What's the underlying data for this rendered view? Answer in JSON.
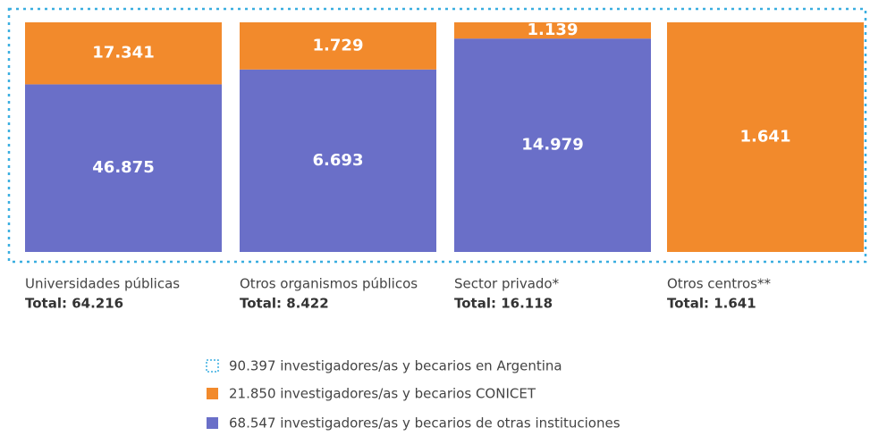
{
  "chart_data": {
    "type": "stacked_bar_100",
    "categories": [
      "Universidades públicas",
      "Otros organismos públicos",
      "Sector privado*",
      "Otros centros**"
    ],
    "total_labels": [
      "Total: 64.216",
      "Total: 8.422",
      "Total: 16.118",
      "Total: 1.641"
    ],
    "series": [
      {
        "name": "68.547 investigadores/as y becarios de otras instituciones",
        "color": "#6a6fc8",
        "values": [
          46875,
          6693,
          14979,
          null
        ],
        "value_labels": [
          "46.875",
          "6.693",
          "14.979",
          null
        ]
      },
      {
        "name": "21.850 investigadores/as y becarios CONICET",
        "color": "#f28a2c",
        "values": [
          17341,
          1729,
          1139,
          1641
        ],
        "value_labels": [
          "17.341",
          "1.729",
          "1.139",
          "1.641"
        ]
      }
    ],
    "outline_label": "90.397 investigadores/as y becarios en Argentina",
    "outline_color": "#3aaee0"
  }
}
